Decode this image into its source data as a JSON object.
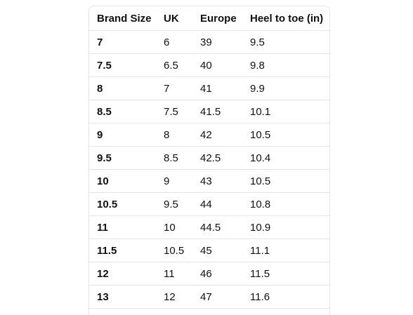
{
  "table": {
    "headers": [
      "Brand Size",
      "UK",
      "Europe",
      "Heel to toe (in)"
    ],
    "rows": [
      [
        "7",
        "6",
        "39",
        "9.5"
      ],
      [
        "7.5",
        "6.5",
        "40",
        "9.8"
      ],
      [
        "8",
        "7",
        "41",
        "9.9"
      ],
      [
        "8.5",
        "7.5",
        "41.5",
        "10.1"
      ],
      [
        "9",
        "8",
        "42",
        "10.5"
      ],
      [
        "9.5",
        "8.5",
        "42.5",
        "10.4"
      ],
      [
        "10",
        "9",
        "43",
        "10.5"
      ],
      [
        "10.5",
        "9.5",
        "44",
        "10.8"
      ],
      [
        "11",
        "10",
        "44.5",
        "10.9"
      ],
      [
        "11.5",
        "10.5",
        "45",
        "11.1"
      ],
      [
        "12",
        "11",
        "46",
        "11.5"
      ],
      [
        "13",
        "12",
        "47",
        "11.6"
      ]
    ]
  },
  "colors": {
    "text": "#0f1111",
    "border": "#e3e6e6",
    "background": "#ffffff"
  }
}
